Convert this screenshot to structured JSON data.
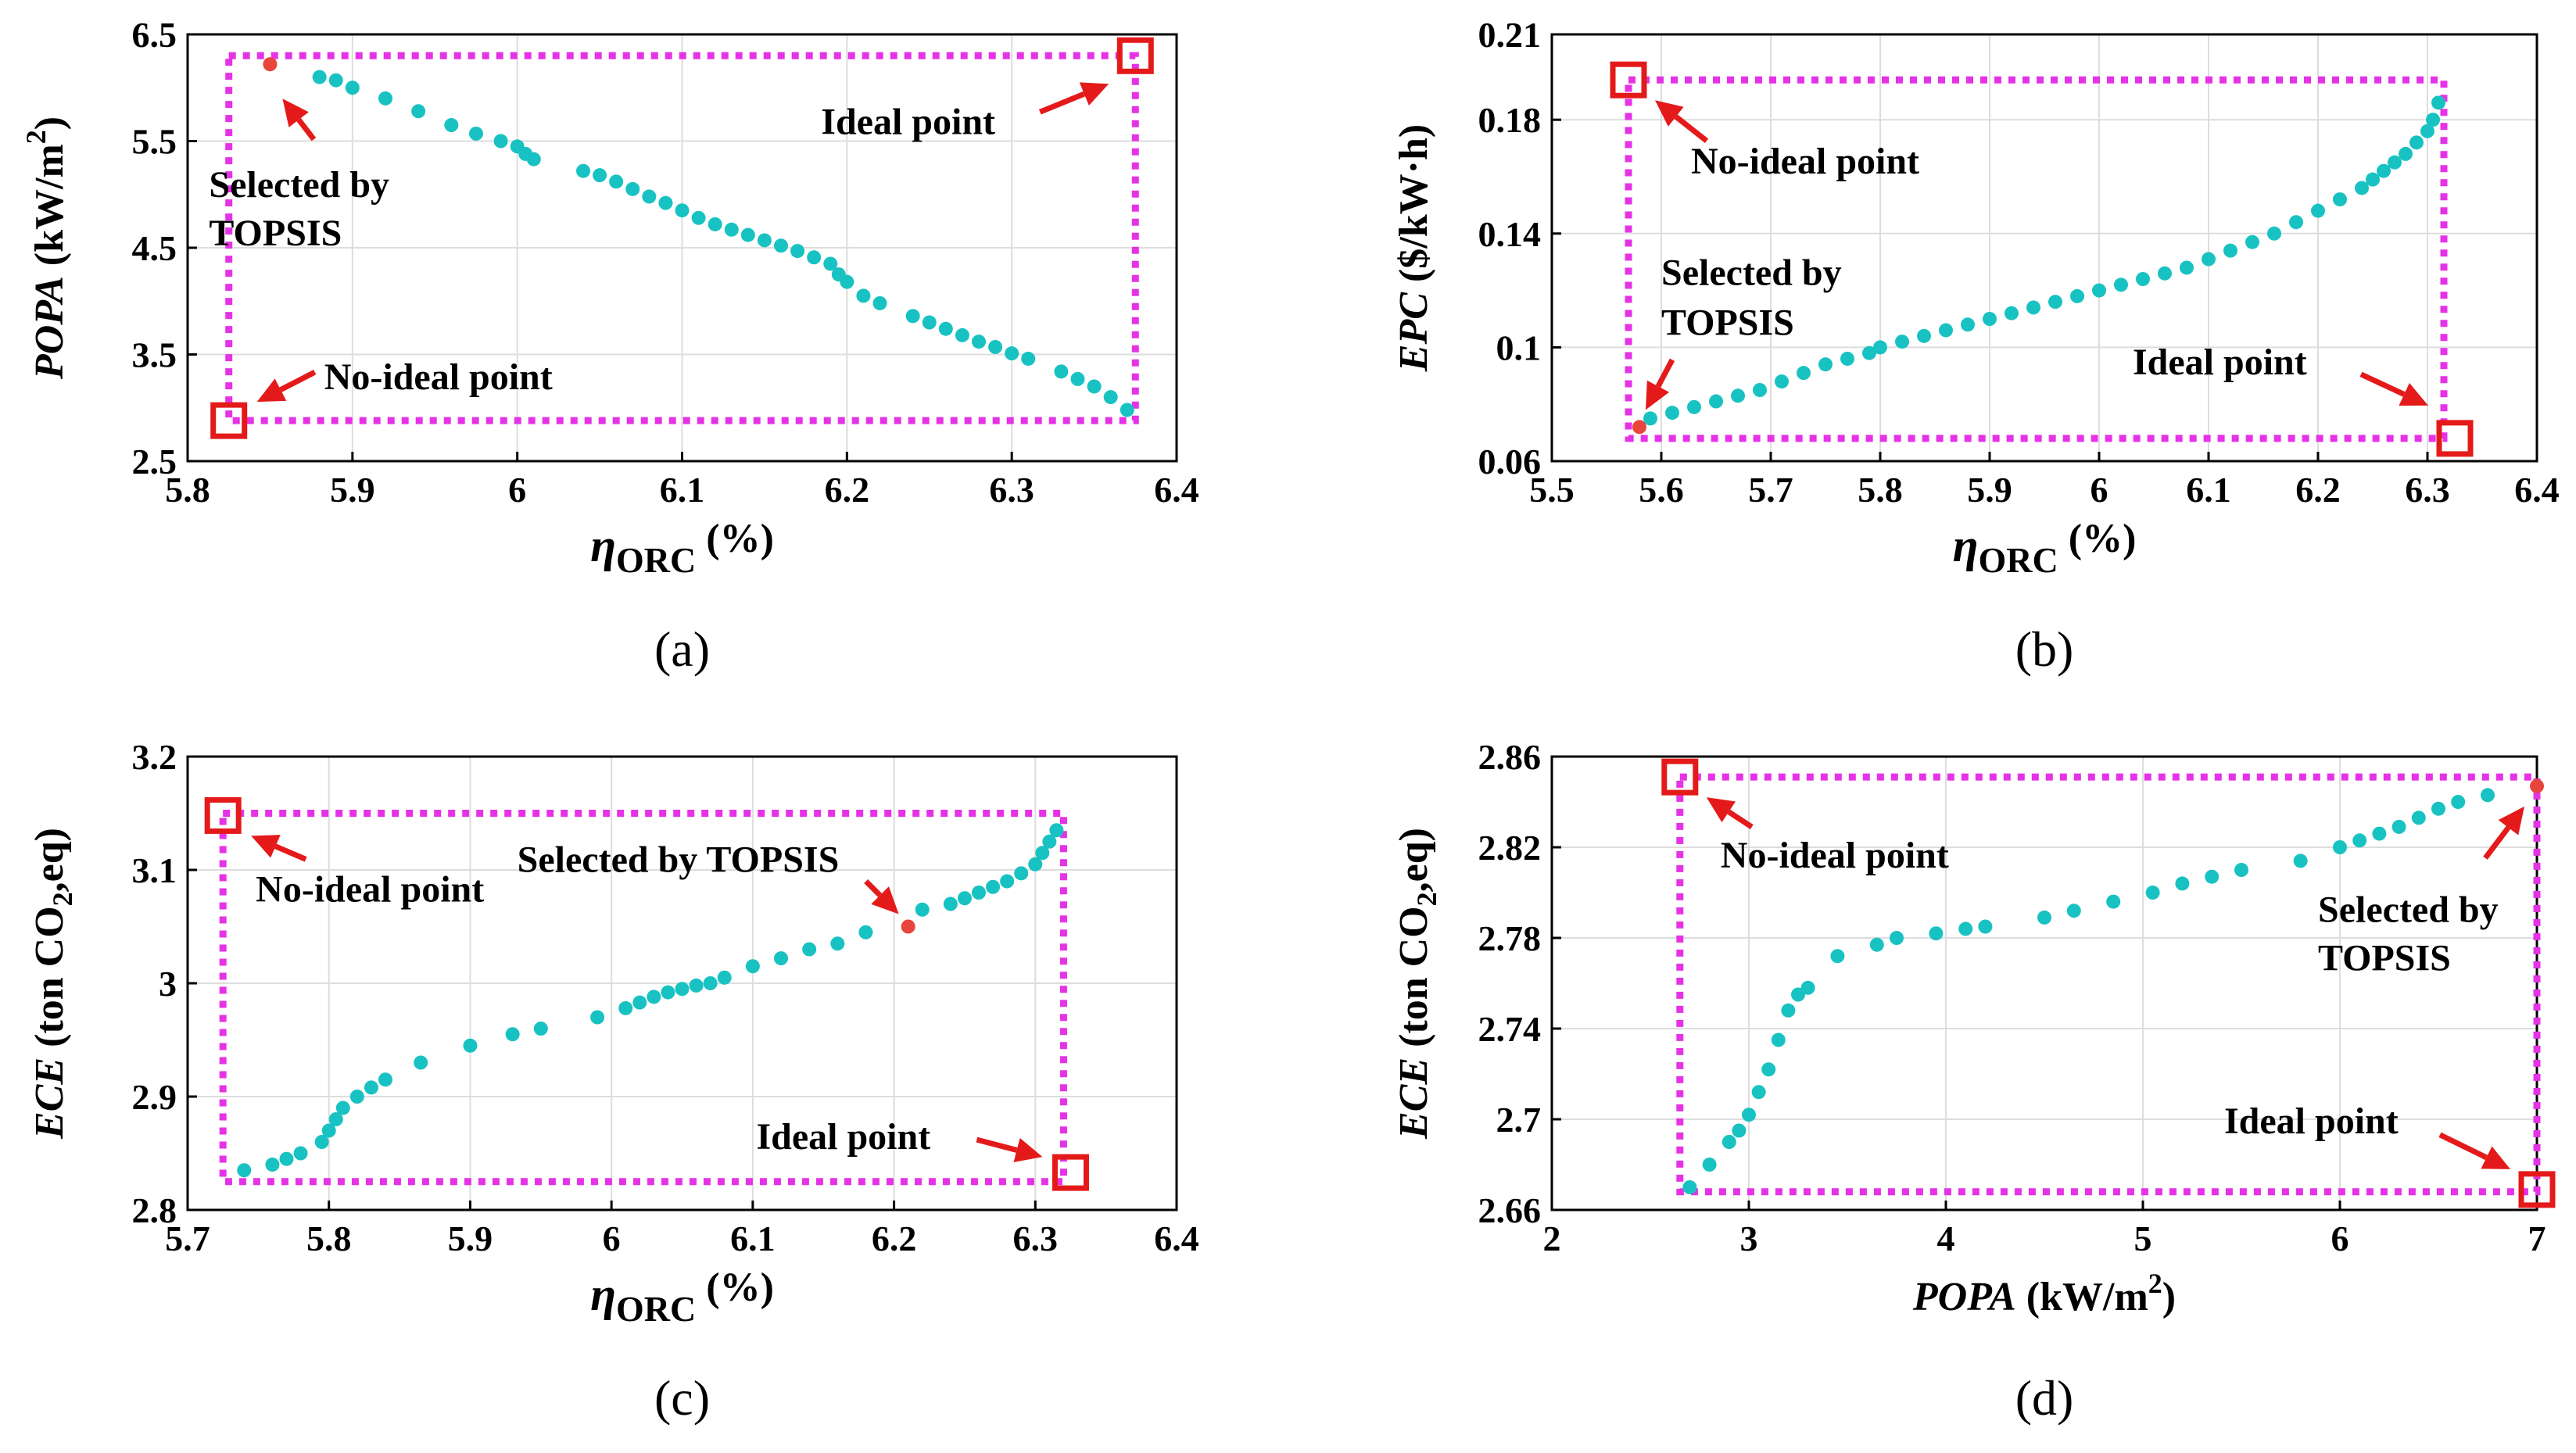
{
  "colors": {
    "frontier_points": "#19c2c2",
    "selected_point": "#e8453c",
    "boundary_box": "#e632e6",
    "marker_box": "#e41a1a",
    "arrow": "#e41a1a"
  },
  "annotation_texts": {
    "ideal": "Ideal point",
    "no_ideal": "No-ideal point",
    "selected_line1": "Selected by",
    "selected_line2": "TOPSIS",
    "selected_oneline": "Selected by TOPSIS"
  },
  "chart_data": [
    {
      "type": "scatter",
      "panel_label": "(a)",
      "xlabel_symbol": "η",
      "xlabel_sub": "ORC",
      "xlabel_unit": "(%)",
      "ylabel_italic": "POPA",
      "ylabel_rest": "(kW/m",
      "ylabel_sup": "2",
      "ylabel_close": ")",
      "xlim": [
        5.8,
        6.4
      ],
      "ylim": [
        2.5,
        6.5
      ],
      "xticks": [
        5.8,
        5.9,
        6,
        6.1,
        6.2,
        6.3,
        6.4
      ],
      "yticks": [
        2.5,
        3.5,
        4.5,
        5.5,
        6.5
      ],
      "xtick_labels": [
        "5.8",
        "5.9",
        "6",
        "6.1",
        "6.2",
        "6.3",
        "6.4"
      ],
      "ytick_labels": [
        "2.5",
        "3.5",
        "4.5",
        "5.5",
        "6.5"
      ],
      "grid": true,
      "frontier": {
        "x": [
          5.88,
          5.89,
          5.9,
          5.92,
          5.94,
          5.96,
          5.975,
          5.99,
          6.0,
          6.005,
          6.01,
          6.04,
          6.05,
          6.06,
          6.07,
          6.08,
          6.09,
          6.1,
          6.11,
          6.12,
          6.13,
          6.14,
          6.15,
          6.16,
          6.17,
          6.18,
          6.19,
          6.195,
          6.2,
          6.21,
          6.22,
          6.24,
          6.25,
          6.26,
          6.27,
          6.28,
          6.29,
          6.3,
          6.31,
          6.33,
          6.34,
          6.35,
          6.36,
          6.37
        ],
        "y": [
          6.1,
          6.07,
          6.0,
          5.9,
          5.78,
          5.65,
          5.57,
          5.5,
          5.45,
          5.38,
          5.33,
          5.22,
          5.18,
          5.12,
          5.05,
          4.98,
          4.92,
          4.85,
          4.78,
          4.72,
          4.67,
          4.62,
          4.57,
          4.52,
          4.47,
          4.41,
          4.35,
          4.25,
          4.18,
          4.05,
          3.98,
          3.86,
          3.8,
          3.74,
          3.68,
          3.62,
          3.57,
          3.51,
          3.46,
          3.34,
          3.27,
          3.2,
          3.1,
          2.98
        ]
      },
      "selected_point": {
        "x": 5.85,
        "y": 6.22
      },
      "ideal_point": {
        "x": 6.375,
        "y": 6.3
      },
      "no_ideal_point": {
        "x": 5.825,
        "y": 2.88
      },
      "box": {
        "x": [
          5.825,
          6.375
        ],
        "y": [
          2.88,
          6.3
        ]
      }
    },
    {
      "type": "scatter",
      "panel_label": "(b)",
      "xlabel_symbol": "η",
      "xlabel_sub": "ORC",
      "xlabel_unit": "(%)",
      "ylabel_italic": "EPC",
      "ylabel_rest": "($/kW·h)",
      "ylabel_sup": "",
      "ylabel_close": "",
      "xlim": [
        5.5,
        6.4
      ],
      "ylim": [
        0.06,
        0.21
      ],
      "xticks": [
        5.5,
        5.6,
        5.7,
        5.8,
        5.9,
        6,
        6.1,
        6.2,
        6.3,
        6.4
      ],
      "yticks": [
        0.06,
        0.1,
        0.14,
        0.18,
        0.21
      ],
      "xtick_labels": [
        "5.5",
        "5.6",
        "5.7",
        "5.8",
        "5.9",
        "6",
        "6.1",
        "6.2",
        "6.3",
        "6.4"
      ],
      "ytick_labels": [
        "0.06",
        "0.1",
        "0.14",
        "0.18",
        "0.21"
      ],
      "grid": true,
      "frontier": {
        "x": [
          5.59,
          5.61,
          5.63,
          5.65,
          5.67,
          5.69,
          5.71,
          5.73,
          5.75,
          5.77,
          5.79,
          5.8,
          5.82,
          5.84,
          5.86,
          5.88,
          5.9,
          5.92,
          5.94,
          5.96,
          5.98,
          6.0,
          6.02,
          6.04,
          6.06,
          6.08,
          6.1,
          6.12,
          6.14,
          6.16,
          6.18,
          6.2,
          6.22,
          6.24,
          6.25,
          6.26,
          6.27,
          6.28,
          6.29,
          6.3,
          6.305,
          6.31
        ],
        "y": [
          0.075,
          0.077,
          0.079,
          0.081,
          0.083,
          0.085,
          0.088,
          0.091,
          0.094,
          0.096,
          0.098,
          0.1,
          0.102,
          0.104,
          0.106,
          0.108,
          0.11,
          0.112,
          0.114,
          0.116,
          0.118,
          0.12,
          0.122,
          0.124,
          0.126,
          0.128,
          0.131,
          0.134,
          0.137,
          0.14,
          0.144,
          0.148,
          0.152,
          0.156,
          0.159,
          0.162,
          0.165,
          0.168,
          0.172,
          0.176,
          0.18,
          0.186
        ]
      },
      "selected_point": {
        "x": 5.58,
        "y": 0.072
      },
      "ideal_point": {
        "x": 6.325,
        "y": 0.068
      },
      "no_ideal_point": {
        "x": 5.57,
        "y": 0.194
      },
      "box": {
        "x": [
          5.57,
          6.315
        ],
        "y": [
          0.068,
          0.194
        ]
      }
    },
    {
      "type": "scatter",
      "panel_label": "(c)",
      "xlabel_symbol": "η",
      "xlabel_sub": "ORC",
      "xlabel_unit": "(%)",
      "ylabel_italic": "ECE",
      "ylabel_rest": "(ton CO",
      "ylabel_sub": "2",
      "ylabel_close": ",eq)",
      "xlim": [
        5.7,
        6.4
      ],
      "ylim": [
        2.8,
        3.2
      ],
      "xticks": [
        5.7,
        5.8,
        5.9,
        6,
        6.1,
        6.2,
        6.3,
        6.4
      ],
      "yticks": [
        2.8,
        2.9,
        3,
        3.1,
        3.2
      ],
      "xtick_labels": [
        "5.7",
        "5.8",
        "5.9",
        "6",
        "6.1",
        "6.2",
        "6.3",
        "6.4"
      ],
      "ytick_labels": [
        "2.8",
        "2.9",
        "3",
        "3.1",
        "3.2"
      ],
      "grid": true,
      "frontier": {
        "x": [
          5.74,
          5.76,
          5.77,
          5.78,
          5.795,
          5.8,
          5.805,
          5.81,
          5.82,
          5.83,
          5.84,
          5.865,
          5.9,
          5.93,
          5.95,
          5.99,
          6.01,
          6.02,
          6.03,
          6.04,
          6.05,
          6.06,
          6.07,
          6.08,
          6.1,
          6.12,
          6.14,
          6.16,
          6.18,
          6.22,
          6.24,
          6.25,
          6.26,
          6.27,
          6.28,
          6.29,
          6.3,
          6.305,
          6.31,
          6.315
        ],
        "y": [
          2.835,
          2.84,
          2.845,
          2.85,
          2.86,
          2.87,
          2.88,
          2.89,
          2.9,
          2.908,
          2.915,
          2.93,
          2.945,
          2.955,
          2.96,
          2.97,
          2.978,
          2.983,
          2.988,
          2.992,
          2.995,
          2.998,
          3.0,
          3.005,
          3.015,
          3.022,
          3.03,
          3.035,
          3.045,
          3.065,
          3.07,
          3.075,
          3.08,
          3.085,
          3.09,
          3.097,
          3.105,
          3.115,
          3.125,
          3.135
        ]
      },
      "selected_point": {
        "x": 6.21,
        "y": 3.05
      },
      "ideal_point": {
        "x": 6.325,
        "y": 2.833
      },
      "no_ideal_point": {
        "x": 5.725,
        "y": 3.148
      },
      "box": {
        "x": [
          5.725,
          6.32
        ],
        "y": [
          2.825,
          3.15
        ]
      }
    },
    {
      "type": "scatter",
      "panel_label": "(d)",
      "xlabel_italic": "POPA",
      "xlabel_rest": "(kW/m",
      "xlabel_sup": "2",
      "xlabel_close": ")",
      "ylabel_italic": "ECE",
      "ylabel_rest": "(ton CO",
      "ylabel_sub": "2",
      "ylabel_close": ",eq)",
      "xlim": [
        2,
        7
      ],
      "ylim": [
        2.66,
        2.86
      ],
      "xticks": [
        2,
        3,
        4,
        5,
        6,
        7
      ],
      "yticks": [
        2.66,
        2.7,
        2.74,
        2.78,
        2.82,
        2.86
      ],
      "xtick_labels": [
        "2",
        "3",
        "4",
        "5",
        "6",
        "7"
      ],
      "ytick_labels": [
        "2.66",
        "2.7",
        "2.74",
        "2.78",
        "2.82",
        "2.86"
      ],
      "grid": true,
      "frontier": {
        "x": [
          2.7,
          2.8,
          2.9,
          2.95,
          3.0,
          3.05,
          3.1,
          3.15,
          3.2,
          3.25,
          3.3,
          3.45,
          3.65,
          3.75,
          3.95,
          4.1,
          4.2,
          4.5,
          4.65,
          4.85,
          5.05,
          5.2,
          5.35,
          5.5,
          5.8,
          6.0,
          6.1,
          6.2,
          6.3,
          6.4,
          6.5,
          6.6,
          6.75
        ],
        "y": [
          2.67,
          2.68,
          2.69,
          2.695,
          2.702,
          2.712,
          2.722,
          2.735,
          2.748,
          2.755,
          2.758,
          2.772,
          2.777,
          2.78,
          2.782,
          2.784,
          2.785,
          2.789,
          2.792,
          2.796,
          2.8,
          2.804,
          2.807,
          2.81,
          2.814,
          2.82,
          2.823,
          2.826,
          2.829,
          2.833,
          2.837,
          2.84,
          2.843
        ]
      },
      "selected_point": {
        "x": 7.0,
        "y": 2.847
      },
      "ideal_point": {
        "x": 7.0,
        "y": 2.669
      },
      "no_ideal_point": {
        "x": 2.65,
        "y": 2.851
      },
      "box": {
        "x": [
          2.65,
          7.0
        ],
        "y": [
          2.668,
          2.851
        ]
      }
    }
  ]
}
